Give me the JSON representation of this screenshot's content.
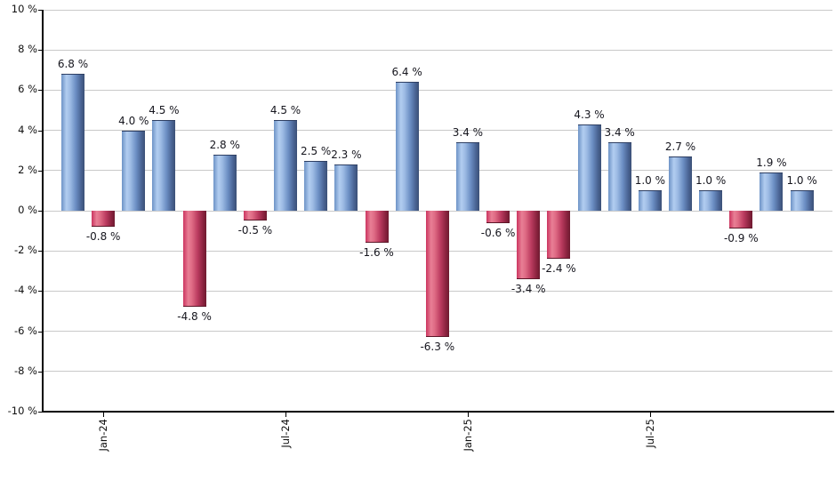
{
  "chart_data": {
    "type": "bar",
    "title": "",
    "xlabel": "",
    "ylabel": "",
    "values": [
      6.8,
      -0.8,
      4.0,
      4.5,
      -4.8,
      2.8,
      -0.5,
      4.5,
      2.5,
      2.3,
      -1.6,
      6.4,
      -6.3,
      3.4,
      -0.6,
      -3.4,
      -2.4,
      4.3,
      3.4,
      1.0,
      2.7,
      1.0,
      -0.9,
      1.9,
      1.0
    ],
    "bar_value_labels": [
      "6.8 %",
      "-0.8 %",
      "4.0 %",
      "4.5 %",
      "-4.8 %",
      "2.8 %",
      "-0.5 %",
      "4.5 %",
      "2.5 %",
      "2.3 %",
      "-1.6 %",
      "6.4 %",
      "-6.3 %",
      "3.4 %",
      "-0.6 %",
      "-3.4 %",
      "-2.4 %",
      "4.3 %",
      "3.4 %",
      "1.0 %",
      "2.7 %",
      "1.0 %",
      "-0.9 %",
      "1.9 %",
      "1.0 %"
    ],
    "ylim": [
      -10,
      10
    ],
    "y_tick_step": 2,
    "y_tick_labels": [
      "10 %",
      "8 %",
      "6 %",
      "4 %",
      "2 %",
      "0 %",
      "-2 %",
      "-4 %",
      "-6 %",
      "-8 %",
      "-10 %"
    ],
    "x_ticks": [
      {
        "label": "Jan-24",
        "bar_index": 1
      },
      {
        "label": "Jul-24",
        "bar_index": 7
      },
      {
        "label": "Jan-25",
        "bar_index": 13
      },
      {
        "label": "Jul-25",
        "bar_index": 19
      }
    ],
    "grid": true,
    "legend": "none",
    "colors": {
      "positive_bar": "#89AEDE",
      "positive_bar_dark": "#3B5076",
      "negative_bar": "#D9536F",
      "negative_bar_dark": "#6E1A30",
      "gridline": "#C9C9C9",
      "axis": "#000000",
      "label_text": "#16161E"
    }
  }
}
